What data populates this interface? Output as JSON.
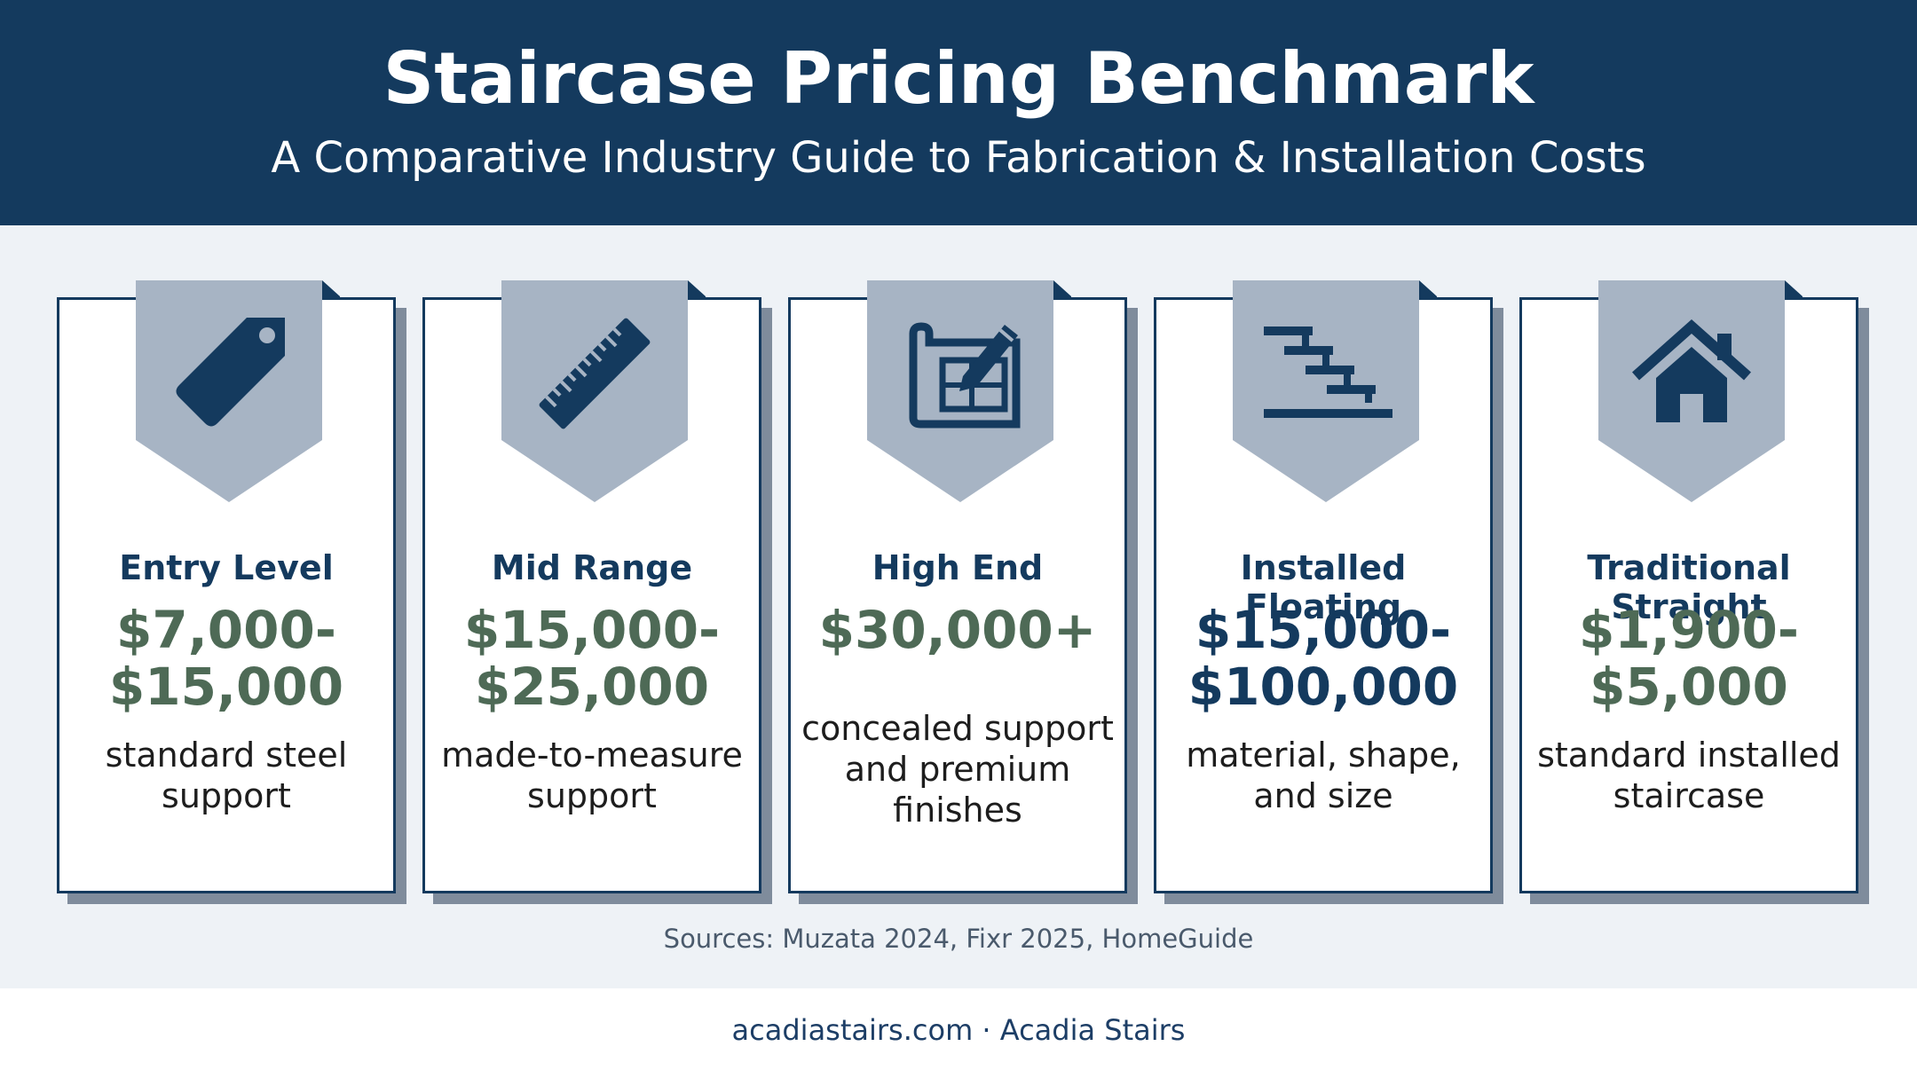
{
  "header": {
    "title": "Staircase Pricing Benchmark",
    "subtitle": "A Comparative Industry Guide to Fabrication & Installation Costs"
  },
  "colors": {
    "header_bg": "#143a5e",
    "badge": "#a7b4c4",
    "price_green": "#4e6a56",
    "price_navy": "#143a5e"
  },
  "cards": [
    {
      "icon": "price-tag-icon",
      "label": "Entry Level",
      "price": [
        "$7,000-",
        "$15,000"
      ],
      "desc": [
        "standard steel",
        "support"
      ]
    },
    {
      "icon": "ruler-icon",
      "label": "Mid Range",
      "price": [
        "$15,000-",
        "$25,000"
      ],
      "desc": [
        "made-to-measure",
        "support"
      ]
    },
    {
      "icon": "blueprint-pencil-icon",
      "label": "High End",
      "price": [
        "$30,000+"
      ],
      "desc": [
        "concealed support",
        "and premium",
        "finishes"
      ]
    },
    {
      "icon": "floating-stairs-icon",
      "label": "Installed Floating",
      "price": [
        "$15,000-",
        "$100,000"
      ],
      "desc": [
        "material, shape,",
        "and size"
      ]
    },
    {
      "icon": "house-icon",
      "label": "Traditional Straight",
      "price": [
        "$1,900-",
        "$5,000"
      ],
      "desc": [
        "standard installed",
        "staircase"
      ]
    }
  ],
  "sources": "Sources: Muzata 2024, Fixr 2025, HomeGuide",
  "footer": "acadiastairs.com · Acadia Stairs"
}
